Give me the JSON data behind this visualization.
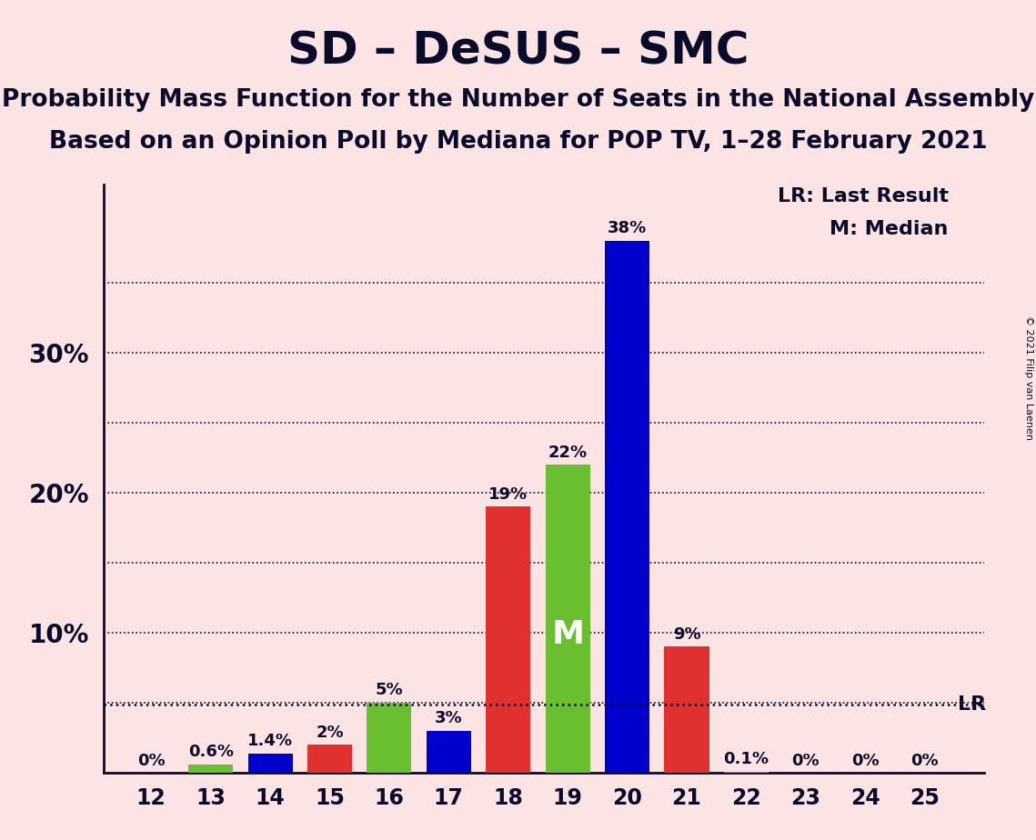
{
  "title": "SD – DeSUS – SMC",
  "subtitle1": "Probability Mass Function for the Number of Seats in the National Assembly",
  "subtitle2": "Based on an Opinion Poll by Mediana for POP TV, 1–28 February 2021",
  "copyright": "© 2021 Filip van Laenen",
  "seats": [
    12,
    13,
    14,
    15,
    16,
    17,
    18,
    19,
    20,
    21,
    22,
    23,
    24,
    25
  ],
  "values": [
    0.0,
    0.6,
    1.4,
    2.0,
    5.0,
    3.0,
    19.0,
    22.0,
    38.0,
    9.0,
    0.1,
    0.0,
    0.0,
    0.0
  ],
  "labels": [
    "0%",
    "0.6%",
    "1.4%",
    "2%",
    "5%",
    "3%",
    "19%",
    "22%",
    "38%",
    "9%",
    "0.1%",
    "0%",
    "0%",
    "0%"
  ],
  "colors": [
    "#0000cc",
    "#6abf30",
    "#0000cc",
    "#e03030",
    "#6abf30",
    "#0000cc",
    "#e03030",
    "#6abf30",
    "#0000cc",
    "#e03030",
    "#6abf30",
    "#0000cc",
    "#e03030",
    "#6abf30"
  ],
  "lr_value": 4.9,
  "median_seat": 19,
  "median_label": "M",
  "lr_label": "LR",
  "legend_lr": "LR: Last Result",
  "legend_m": "M: Median",
  "background_color": "#fce4e4",
  "ylim": [
    0,
    42
  ],
  "bar_width": 0.75,
  "title_fontsize": 36,
  "subtitle_fontsize": 19,
  "tick_fontsize": 17,
  "ytick_fontsize": 20,
  "label_fontsize": 13,
  "legend_fontsize": 16
}
